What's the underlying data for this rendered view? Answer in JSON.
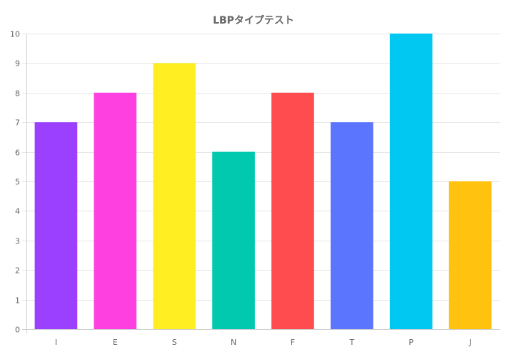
{
  "chart_data": {
    "type": "bar",
    "title": "LBPタイプテスト",
    "xlabel": "",
    "ylabel": "",
    "categories": [
      "I",
      "E",
      "S",
      "N",
      "F",
      "T",
      "P",
      "J"
    ],
    "values": [
      7,
      8,
      9,
      6,
      8,
      7,
      10,
      5
    ],
    "colors": [
      "#9b40ff",
      "#ff40e0",
      "#ffee22",
      "#00c9b0",
      "#ff4d4f",
      "#5b75ff",
      "#00c8f0",
      "#ffc20e"
    ],
    "ylim": [
      0,
      10
    ],
    "yticks": [
      "0",
      "1",
      "2",
      "3",
      "4",
      "5",
      "6",
      "7",
      "8",
      "9",
      "10"
    ],
    "grid": true,
    "legend": "none"
  }
}
